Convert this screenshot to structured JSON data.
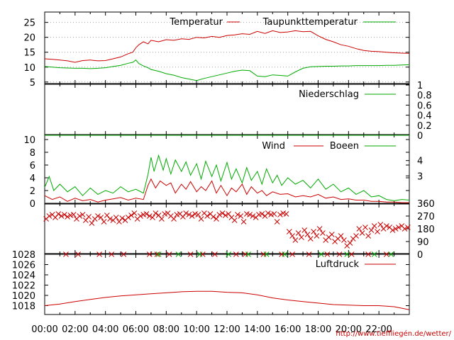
{
  "colors": {
    "red": "#cc0000",
    "green": "#00aa00",
    "axis": "#000000",
    "grid": "#a0a0a0",
    "link": "#cc0000"
  },
  "chart_data": {
    "type": "line",
    "footer": "http://www.tieffliegén.de/wetter/",
    "x_ticks": [
      "00:00",
      "02:00",
      "04:00",
      "06:00",
      "08:00",
      "10:00",
      "12:00",
      "14:00",
      "16:00",
      "18:00",
      "20:00",
      "22:00"
    ],
    "x_hours": [
      0,
      2,
      4,
      6,
      8,
      10,
      12,
      14,
      16,
      18,
      20,
      22
    ],
    "x_range": [
      0,
      24
    ],
    "panels": {
      "temp": {
        "ylim": [
          4,
          28
        ],
        "left_ticks": [
          "25",
          "20",
          "15",
          "10",
          "5"
        ],
        "left_tick_values": [
          25,
          20,
          15,
          10,
          5
        ],
        "grid": true,
        "series": [
          {
            "name": "Temperatur",
            "color": "#cc0000",
            "x": [
              0,
              0.5,
              1,
              1.5,
              2,
              2.5,
              3,
              3.5,
              4,
              4.5,
              5,
              5.5,
              5.8,
              6,
              6.2,
              6.5,
              6.8,
              7,
              7.5,
              8,
              8.5,
              9,
              9.5,
              10,
              10.5,
              11,
              11.5,
              12,
              12.5,
              13,
              13.5,
              14,
              14.5,
              15,
              15.5,
              16,
              16.5,
              17,
              17.5,
              18,
              18.5,
              19,
              19.5,
              20,
              20.5,
              21,
              21.5,
              22,
              22.5,
              23,
              23.5,
              24
            ],
            "y": [
              12.8,
              12.6,
              12.4,
              12.1,
              11.6,
              12.2,
              12.4,
              12.1,
              12.2,
              12.8,
              13.4,
              14.5,
              15.0,
              16.5,
              17.5,
              18.5,
              17.8,
              19.0,
              18.5,
              19.2,
              19.0,
              19.5,
              19.3,
              20.0,
              19.8,
              20.3,
              20.0,
              20.6,
              20.8,
              21.2,
              21.0,
              22.0,
              21.3,
              22.2,
              21.6,
              21.8,
              22.2,
              21.9,
              22.0,
              20.5,
              19.3,
              18.5,
              17.5,
              17.0,
              16.2,
              15.6,
              15.3,
              15.2,
              15.0,
              14.8,
              14.7,
              14.6
            ]
          },
          {
            "name": "Taupunkttemperatur",
            "color": "#00aa00",
            "x": [
              0,
              0.5,
              1,
              1.5,
              2,
              2.5,
              3,
              3.5,
              4,
              4.5,
              5,
              5.5,
              5.8,
              6,
              6.2,
              6.5,
              6.8,
              7,
              7.5,
              8,
              8.5,
              9,
              9.5,
              10,
              10.5,
              11,
              11.5,
              12,
              12.5,
              13,
              13.5,
              14,
              14.5,
              15,
              15.5,
              16,
              16.5,
              17,
              17.5,
              18,
              18.5,
              19,
              19.5,
              20,
              20.5,
              21,
              21.5,
              22,
              22.5,
              23,
              23.5,
              24
            ],
            "y": [
              10.2,
              10.0,
              9.8,
              9.7,
              9.6,
              9.6,
              9.5,
              9.6,
              9.8,
              10.2,
              10.6,
              11.3,
              11.6,
              12.4,
              11.2,
              10.4,
              9.8,
              9.2,
              8.6,
              7.8,
              7.3,
              6.5,
              6.0,
              5.5,
              6.2,
              6.8,
              7.4,
              8.0,
              8.6,
              9.0,
              8.8,
              7.0,
              6.8,
              7.4,
              7.2,
              7.0,
              8.4,
              9.6,
              10.1,
              10.2,
              10.3,
              10.3,
              10.4,
              10.4,
              10.5,
              10.5,
              10.5,
              10.5,
              10.6,
              10.6,
              10.7,
              10.8
            ]
          }
        ]
      },
      "rain": {
        "ylim": [
          0,
          1
        ],
        "right_ticks": [
          "1",
          "0.8",
          "0.6",
          "0.4",
          "0.2",
          "0"
        ],
        "right_tick_values": [
          1,
          0.8,
          0.6,
          0.4,
          0.2,
          0
        ],
        "series": [
          {
            "name": "Niederschlag",
            "color": "#00aa00",
            "x": [
              0,
              24
            ],
            "y": [
              0,
              0
            ]
          }
        ]
      },
      "wind": {
        "ylim": [
          0,
          10
        ],
        "left_ticks": [
          "10",
          "8",
          "6",
          "4",
          "2",
          "0"
        ],
        "left_tick_values": [
          10,
          8,
          6,
          4,
          2,
          0
        ],
        "right_ticks": [
          "4",
          "3"
        ],
        "right_tick_values": [
          6.7,
          4.3
        ],
        "series": [
          {
            "name": "Wind",
            "color": "#cc0000",
            "x": [
              0,
              0.5,
              1,
              1.5,
              2,
              2.5,
              3,
              3.5,
              4,
              4.5,
              5,
              5.5,
              6,
              6.5,
              6.8,
              7,
              7.3,
              7.6,
              8,
              8.3,
              8.6,
              9,
              9.3,
              9.6,
              10,
              10.3,
              10.6,
              11,
              11.3,
              11.6,
              12,
              12.3,
              12.6,
              13,
              13.3,
              13.6,
              14,
              14.3,
              14.6,
              15,
              15.5,
              16,
              16.5,
              17,
              17.5,
              18,
              18.5,
              19,
              19.5,
              20,
              20.5,
              21,
              21.5,
              22,
              22.5,
              23,
              23.5,
              24
            ],
            "y": [
              1.2,
              0.6,
              1.0,
              0.3,
              0.8,
              0.4,
              0.6,
              0.2,
              0.5,
              0.7,
              0.9,
              0.5,
              0.8,
              0.6,
              2.8,
              3.8,
              2.4,
              3.5,
              2.8,
              3.2,
              1.6,
              3.0,
              2.2,
              3.4,
              1.8,
              2.6,
              2.0,
              3.5,
              1.6,
              2.8,
              1.2,
              2.4,
              1.8,
              3.0,
              1.4,
              2.6,
              1.6,
              2.0,
              1.2,
              1.8,
              1.4,
              1.5,
              1.0,
              1.2,
              1.0,
              1.4,
              0.8,
              1.0,
              0.6,
              0.7,
              0.5,
              0.5,
              0.3,
              0.3,
              0.2,
              0.2,
              0.1,
              0.1
            ]
          },
          {
            "name": "Boeen",
            "color": "#00aa00",
            "x": [
              0,
              0.3,
              0.6,
              1,
              1.5,
              2,
              2.5,
              3,
              3.5,
              4,
              4.5,
              5,
              5.5,
              6,
              6.5,
              6.8,
              7,
              7.2,
              7.5,
              7.8,
              8,
              8.3,
              8.6,
              9,
              9.3,
              9.6,
              10,
              10.3,
              10.6,
              11,
              11.3,
              11.6,
              12,
              12.3,
              12.6,
              13,
              13.3,
              13.6,
              14,
              14.3,
              14.6,
              15,
              15.3,
              15.6,
              16,
              16.5,
              17,
              17.5,
              18,
              18.5,
              19,
              19.5,
              20,
              20.5,
              21,
              21.5,
              22,
              22.5,
              23,
              23.5,
              24
            ],
            "y": [
              2.5,
              4.2,
              2.0,
              3.0,
              1.8,
              2.6,
              1.2,
              2.4,
              1.4,
              2.0,
              1.6,
              2.6,
              1.8,
              2.2,
              1.6,
              4.5,
              7.2,
              5.0,
              7.5,
              5.2,
              7.0,
              4.6,
              6.8,
              5.0,
              6.5,
              4.4,
              6.2,
              3.8,
              6.6,
              4.2,
              6.0,
              3.5,
              6.4,
              3.8,
              5.4,
              3.2,
              5.6,
              3.6,
              5.0,
              3.0,
              5.4,
              3.2,
              4.4,
              2.8,
              4.0,
              3.0,
              3.6,
              2.4,
              3.8,
              2.2,
              3.0,
              1.8,
              2.4,
              1.4,
              2.0,
              1.0,
              1.2,
              0.6,
              0.4,
              0.6,
              0.5
            ]
          }
        ]
      },
      "dir": {
        "ylim": [
          0,
          360
        ],
        "right_ticks": [
          "360",
          "270",
          "180",
          "90",
          "0"
        ],
        "right_tick_values": [
          360,
          270,
          180,
          90,
          0
        ],
        "series": [
          {
            "name": "Windrichtung",
            "color": "#cc0000",
            "marker": "x",
            "x": [
              0.1,
              0.3,
              0.5,
              0.7,
              0.9,
              1.1,
              1.3,
              1.5,
              1.7,
              1.9,
              2.1,
              2.3,
              2.5,
              2.7,
              2.9,
              3.1,
              3.3,
              3.5,
              3.7,
              3.9,
              4.1,
              4.3,
              4.5,
              4.7,
              4.9,
              5.1,
              5.3,
              5.5,
              5.7,
              5.9,
              6.1,
              6.3,
              6.5,
              6.7,
              6.9,
              7.1,
              7.3,
              7.5,
              7.7,
              7.9,
              8.1,
              8.3,
              8.5,
              8.7,
              8.9,
              9.1,
              9.3,
              9.5,
              9.7,
              9.9,
              10.1,
              10.3,
              10.5,
              10.7,
              10.9,
              11.1,
              11.3,
              11.5,
              11.7,
              11.9,
              12.1,
              12.3,
              12.5,
              12.7,
              12.9,
              13.1,
              13.3,
              13.5,
              13.7,
              13.9,
              14.1,
              14.3,
              14.5,
              14.7,
              14.9,
              15.1,
              15.3,
              15.5,
              15.7,
              15.9,
              16.1,
              16.3,
              16.5,
              16.7,
              16.9,
              17.1,
              17.3,
              17.5,
              17.7,
              17.9,
              18.1,
              18.3,
              18.5,
              18.7,
              18.9,
              19.1,
              19.3,
              19.5,
              19.7,
              19.9,
              20.1,
              20.3,
              20.5,
              20.7,
              20.9,
              21.1,
              21.3,
              21.5,
              21.7,
              21.9,
              22.1,
              22.3,
              22.5,
              22.7,
              22.9,
              23.1,
              23.3,
              23.5,
              23.7,
              23.9,
              1.4,
              2.2,
              3.6,
              4.4,
              5.2,
              6.9,
              7.4,
              8.2,
              9.6,
              10.4,
              11.2,
              12.6,
              13.2,
              14.4,
              15.6,
              16.3,
              17.4,
              18.6,
              19.4,
              20.2,
              21.3,
              22.5
            ],
            "y": [
              250,
              270,
              280,
              260,
              285,
              270,
              280,
              265,
              275,
              280,
              250,
              270,
              280,
              240,
              265,
              220,
              250,
              270,
              260,
              230,
              275,
              250,
              240,
              260,
              230,
              255,
              240,
              260,
              275,
              290,
              250,
              270,
              280,
              285,
              270,
              260,
              290,
              275,
              250,
              285,
              290,
              270,
              250,
              280,
              285,
              265,
              290,
              280,
              270,
              285,
              280,
              250,
              290,
              270,
              285,
              265,
              250,
              280,
              290,
              275,
              285,
              260,
              240,
              280,
              270,
              230,
              285,
              280,
              270,
              260,
              280,
              285,
              270,
              290,
              280,
              285,
              230,
              280,
              290,
              285,
              160,
              130,
              100,
              150,
              120,
              170,
              140,
              110,
              160,
              130,
              180,
              150,
              100,
              120,
              140,
              90,
              110,
              130,
              100,
              60,
              80,
              110,
              130,
              180,
              150,
              190,
              130,
              170,
              200,
              160,
              210,
              180,
              200,
              190,
              170,
              180,
              190,
              200,
              180,
              190,
              0,
              0,
              0,
              0,
              0,
              0,
              0,
              0,
              0,
              0,
              0,
              0,
              0,
              0,
              0,
              0,
              0,
              0,
              0,
              0,
              0,
              0
            ]
          },
          {
            "name": "Windrichtung Boeen",
            "color": "#00aa00",
            "marker": "x",
            "x": [
              7.5,
              8.8,
              10.2,
              12.1,
              13.4,
              14.6,
              15.8,
              18.2,
              19.9,
              21.7,
              22.8
            ],
            "y": [
              0,
              0,
              0,
              0,
              0,
              0,
              0,
              0,
              0,
              0,
              0
            ]
          }
        ]
      },
      "pressure": {
        "ylim": [
          1016,
          1028
        ],
        "left_ticks": [
          "1028",
          "1026",
          "1024",
          "1022",
          "1020",
          "1018"
        ],
        "left_tick_values": [
          1028,
          1026,
          1024,
          1022,
          1020,
          1018
        ],
        "series": [
          {
            "name": "Luftdruck",
            "color": "#cc0000",
            "x": [
              0,
              1,
              2,
              3,
              4,
              5,
              6,
              7,
              8,
              9,
              10,
              11,
              12,
              13,
              14,
              15,
              16,
              17,
              18,
              19,
              20,
              21,
              22,
              23,
              23.5,
              24
            ],
            "y": [
              1018.0,
              1018.3,
              1018.8,
              1019.2,
              1019.6,
              1019.9,
              1020.1,
              1020.3,
              1020.5,
              1020.7,
              1020.8,
              1020.8,
              1020.6,
              1020.5,
              1020.1,
              1019.5,
              1019.1,
              1018.8,
              1018.5,
              1018.2,
              1018.1,
              1018.0,
              1018.0,
              1017.8,
              1017.5,
              1017.2
            ]
          }
        ]
      }
    }
  }
}
